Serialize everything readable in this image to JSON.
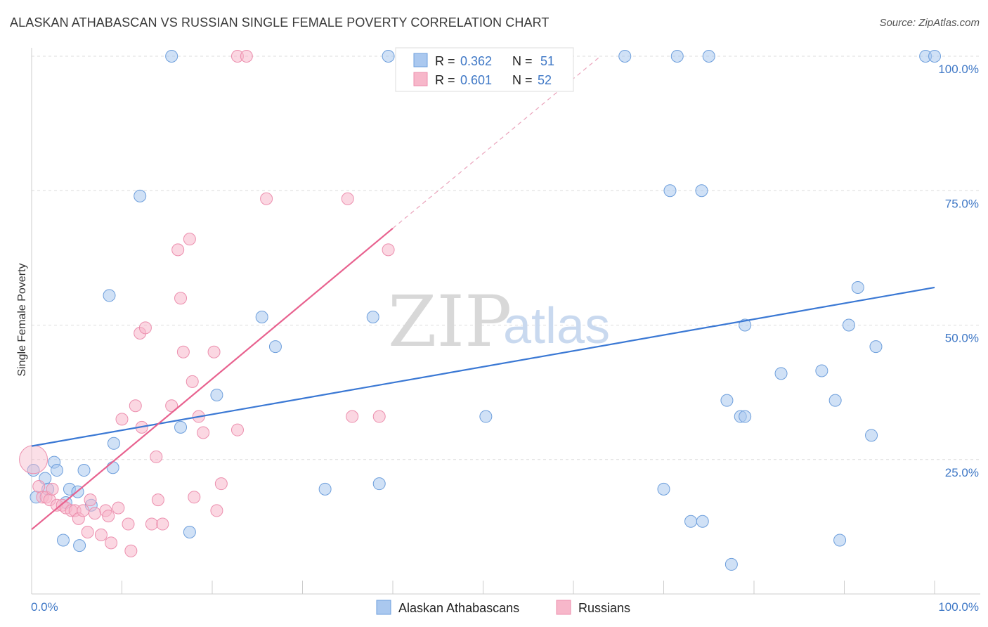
{
  "title": "ALASKAN ATHABASCAN VS RUSSIAN SINGLE FEMALE POVERTY CORRELATION CHART",
  "source": "Source: ZipAtlas.com",
  "watermark": {
    "zip": "ZIP",
    "atlas": "atlas"
  },
  "legend_box": {
    "rows": [
      {
        "r_label": "R = ",
        "r_value": "0.362",
        "n_label": "N = ",
        "n_value": "51",
        "color": "#aac8ef",
        "stroke": "#6e9fdc"
      },
      {
        "r_label": "R = ",
        "r_value": "0.601",
        "n_label": "N = ",
        "n_value": "52",
        "color": "#f7b7ca",
        "stroke": "#ec8fae"
      }
    ]
  },
  "bottom_legend": [
    {
      "label": "Alaskan Athabascans",
      "color": "#aac8ef",
      "stroke": "#6e9fdc"
    },
    {
      "label": "Russians",
      "color": "#f7b7ca",
      "stroke": "#ec8fae"
    }
  ],
  "chart_data": {
    "type": "scatter",
    "title": "ALASKAN ATHABASCAN VS RUSSIAN SINGLE FEMALE POVERTY CORRELATION CHART",
    "xlabel": "",
    "ylabel": "Single Female Poverty",
    "xlim": [
      0,
      100
    ],
    "ylim": [
      0,
      100
    ],
    "x_ticks": [
      0,
      10,
      20,
      30,
      40,
      50,
      60,
      70,
      80,
      90,
      100
    ],
    "x_tick_labels": [
      {
        "x": 0,
        "label": "0.0%"
      },
      {
        "x": 100,
        "label": "100.0%"
      }
    ],
    "y_tick_labels": [
      {
        "y": 100,
        "label": "100.0%"
      },
      {
        "y": 75,
        "label": "75.0%"
      },
      {
        "y": 50,
        "label": "50.0%"
      },
      {
        "y": 25,
        "label": "25.0%"
      }
    ],
    "y_gridlines": [
      100,
      75,
      50,
      25
    ],
    "grid": true,
    "legend_position": "top-center",
    "series": [
      {
        "name": "Alaskan Athabascans",
        "color": "#6e9fdc",
        "fill": "#aac8ef",
        "r": 0.362,
        "n": 51,
        "trend": {
          "x0": 0,
          "y0": 27.5,
          "x1": 100,
          "y1": 57
        },
        "points": [
          [
            0.2,
            23
          ],
          [
            0.5,
            18
          ],
          [
            1.5,
            21.5
          ],
          [
            1.8,
            19.5
          ],
          [
            2.5,
            24.5
          ],
          [
            2.8,
            23
          ],
          [
            3.5,
            10
          ],
          [
            3.8,
            17
          ],
          [
            4.2,
            19.5
          ],
          [
            5.1,
            19
          ],
          [
            5.3,
            9
          ],
          [
            5.8,
            23
          ],
          [
            6.6,
            16.5
          ],
          [
            8.6,
            55.5
          ],
          [
            9.0,
            23.5
          ],
          [
            9.1,
            28
          ],
          [
            12.0,
            74
          ],
          [
            15.5,
            100
          ],
          [
            16.5,
            31
          ],
          [
            17.5,
            11.5
          ],
          [
            20.5,
            37
          ],
          [
            25.5,
            51.5
          ],
          [
            27.0,
            46
          ],
          [
            32.5,
            19.5
          ],
          [
            37.8,
            51.5
          ],
          [
            38.5,
            20.5
          ],
          [
            39.5,
            100
          ],
          [
            50.3,
            33
          ],
          [
            65.7,
            100
          ],
          [
            70.0,
            19.5
          ],
          [
            70.7,
            75
          ],
          [
            71.5,
            100
          ],
          [
            73.0,
            13.5
          ],
          [
            74.2,
            75
          ],
          [
            74.3,
            13.5
          ],
          [
            75.0,
            100
          ],
          [
            77.0,
            36
          ],
          [
            77.5,
            5.5
          ],
          [
            78.5,
            33
          ],
          [
            79.0,
            33
          ],
          [
            79.0,
            50
          ],
          [
            83.0,
            41
          ],
          [
            87.5,
            41.5
          ],
          [
            89.0,
            36
          ],
          [
            89.5,
            10
          ],
          [
            90.5,
            50
          ],
          [
            91.5,
            57
          ],
          [
            93.0,
            29.5
          ],
          [
            93.5,
            46
          ],
          [
            99.0,
            100
          ],
          [
            100.0,
            100
          ]
        ]
      },
      {
        "name": "Russians",
        "color": "#ec8fae",
        "fill": "#f7b7ca",
        "r": 0.601,
        "n": 52,
        "trend": {
          "x0": 0,
          "y0": 12,
          "x1": 40,
          "y1": 68
        },
        "trend_dashed": {
          "x0": 40,
          "y0": 68,
          "x1": 63,
          "y1": 100
        },
        "points": [
          [
            0.2,
            25
          ],
          [
            0.8,
            20
          ],
          [
            1.2,
            18
          ],
          [
            1.6,
            18
          ],
          [
            2.0,
            17.5
          ],
          [
            2.3,
            19.5
          ],
          [
            2.8,
            16.5
          ],
          [
            3.4,
            16.5
          ],
          [
            3.8,
            16
          ],
          [
            4.4,
            15.5
          ],
          [
            4.8,
            15.5
          ],
          [
            5.2,
            14
          ],
          [
            5.7,
            15.5
          ],
          [
            6.2,
            11.5
          ],
          [
            6.5,
            17.5
          ],
          [
            7.0,
            15
          ],
          [
            7.7,
            11
          ],
          [
            8.2,
            15.5
          ],
          [
            8.5,
            14.5
          ],
          [
            8.8,
            9.5
          ],
          [
            9.6,
            16
          ],
          [
            10.0,
            32.5
          ],
          [
            10.7,
            13
          ],
          [
            11.0,
            8
          ],
          [
            11.5,
            35
          ],
          [
            12.0,
            48.5
          ],
          [
            12.2,
            31
          ],
          [
            12.6,
            49.5
          ],
          [
            13.3,
            13
          ],
          [
            13.8,
            25.5
          ],
          [
            14.0,
            17.5
          ],
          [
            14.5,
            13
          ],
          [
            15.5,
            35
          ],
          [
            16.2,
            64
          ],
          [
            16.5,
            55
          ],
          [
            16.8,
            45
          ],
          [
            17.5,
            66
          ],
          [
            17.8,
            39.5
          ],
          [
            18.0,
            18
          ],
          [
            18.5,
            33
          ],
          [
            19.0,
            30
          ],
          [
            20.2,
            45
          ],
          [
            20.5,
            15.5
          ],
          [
            21.0,
            20.5
          ],
          [
            22.8,
            30.5
          ],
          [
            22.8,
            100
          ],
          [
            23.8,
            100
          ],
          [
            26.0,
            73.5
          ],
          [
            35.0,
            73.5
          ],
          [
            35.5,
            33
          ],
          [
            38.5,
            33
          ],
          [
            39.5,
            64
          ]
        ]
      }
    ]
  }
}
